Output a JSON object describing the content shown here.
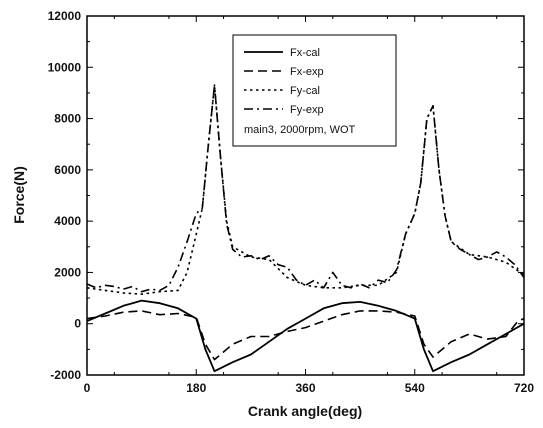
{
  "chart_data": {
    "type": "line",
    "xlabel": "Crank angle(deg)",
    "ylabel": "Force(N)",
    "xlim": [
      0,
      720
    ],
    "ylim": [
      -2000,
      12000
    ],
    "xticks": [
      0,
      180,
      360,
      540,
      720
    ],
    "yticks": [
      -2000,
      0,
      2000,
      4000,
      6000,
      8000,
      10000,
      12000
    ],
    "xtick_labels": [
      "0",
      "180",
      "360",
      "540",
      "720"
    ],
    "ytick_labels": [
      "-2000",
      "0",
      "2000",
      "4000",
      "6000",
      "8000",
      "10000",
      "12000"
    ],
    "grid": false,
    "legend_position": "top-center",
    "annotation": "main3, 2000rpm, WOT",
    "series": [
      {
        "name": "Fx-cal",
        "style": "solid",
        "color": "#000000",
        "x": [
          0,
          30,
          60,
          90,
          120,
          150,
          180,
          195,
          210,
          240,
          270,
          300,
          330,
          360,
          390,
          420,
          450,
          480,
          510,
          540,
          555,
          570,
          600,
          630,
          660,
          690,
          720
        ],
        "y": [
          100,
          400,
          700,
          900,
          800,
          600,
          200,
          -1000,
          -1850,
          -1500,
          -1200,
          -700,
          -200,
          200,
          600,
          800,
          850,
          700,
          500,
          200,
          -1000,
          -1850,
          -1500,
          -1200,
          -800,
          -400,
          0
        ]
      },
      {
        "name": "Fx-exp",
        "style": "dashed",
        "color": "#000000",
        "x": [
          0,
          30,
          60,
          90,
          120,
          150,
          180,
          195,
          210,
          240,
          270,
          300,
          330,
          360,
          390,
          420,
          450,
          480,
          510,
          540,
          555,
          570,
          600,
          630,
          660,
          690,
          710,
          720
        ],
        "y": [
          200,
          300,
          450,
          500,
          350,
          400,
          250,
          -800,
          -1400,
          -800,
          -500,
          -500,
          -300,
          -150,
          100,
          350,
          500,
          500,
          450,
          300,
          -800,
          -1300,
          -700,
          -400,
          -600,
          -500,
          100,
          200
        ]
      },
      {
        "name": "Fy-cal",
        "style": "dotted",
        "color": "#000000",
        "x": [
          0,
          30,
          60,
          90,
          120,
          150,
          165,
          180,
          190,
          200,
          210,
          220,
          230,
          240,
          270,
          300,
          330,
          360,
          390,
          420,
          450,
          480,
          510,
          525,
          540,
          550,
          560,
          570,
          580,
          590,
          600,
          630,
          660,
          690,
          720
        ],
        "y": [
          1400,
          1300,
          1200,
          1150,
          1250,
          1300,
          2000,
          3500,
          4500,
          7000,
          9300,
          6500,
          4000,
          3000,
          2600,
          2500,
          1800,
          1500,
          1400,
          1400,
          1500,
          1500,
          2000,
          3500,
          4300,
          5500,
          8000,
          8500,
          6000,
          4200,
          3200,
          2700,
          2600,
          2400,
          1900
        ]
      },
      {
        "name": "Fy-exp",
        "style": "dashdot",
        "color": "#000000",
        "x": [
          0,
          15,
          30,
          45,
          60,
          75,
          90,
          105,
          120,
          135,
          150,
          165,
          180,
          190,
          200,
          210,
          220,
          230,
          240,
          255,
          270,
          285,
          300,
          315,
          330,
          345,
          360,
          375,
          390,
          405,
          420,
          435,
          450,
          465,
          480,
          495,
          510,
          525,
          540,
          550,
          560,
          570,
          580,
          590,
          600,
          615,
          630,
          645,
          660,
          675,
          690,
          705,
          720
        ],
        "y": [
          1550,
          1400,
          1500,
          1450,
          1350,
          1450,
          1250,
          1350,
          1300,
          1500,
          2200,
          3200,
          4300,
          4500,
          7000,
          9300,
          6500,
          3900,
          2900,
          2600,
          2650,
          2500,
          2650,
          2300,
          2200,
          1700,
          1500,
          1700,
          1400,
          2000,
          1500,
          1400,
          1550,
          1400,
          1700,
          1600,
          2100,
          3500,
          4300,
          5500,
          8000,
          8500,
          6000,
          4200,
          3200,
          2900,
          2700,
          2500,
          2600,
          2800,
          2600,
          2300,
          1800
        ]
      }
    ]
  }
}
